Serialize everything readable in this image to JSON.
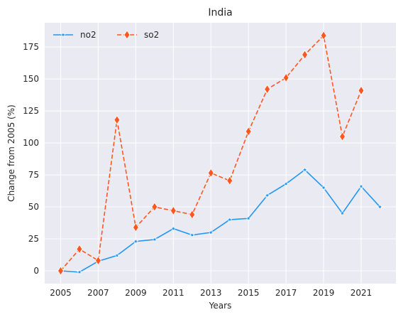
{
  "chart_data": {
    "type": "line",
    "title": "India",
    "xlabel": "Years",
    "ylabel": "Change from 2005 (%)",
    "xlim": [
      2004.15,
      2022.85
    ],
    "ylim": [
      -10,
      194
    ],
    "x_ticks": [
      2005,
      2007,
      2009,
      2011,
      2013,
      2015,
      2017,
      2019,
      2021
    ],
    "y_ticks": [
      0,
      25,
      50,
      75,
      100,
      125,
      150,
      175
    ],
    "grid": true,
    "legend": "top-left",
    "background": "#eaeaf2",
    "series": [
      {
        "name": "no2",
        "color": "#2196f3",
        "line_style": "solid",
        "marker": "star",
        "x": [
          2005,
          2006,
          2007,
          2008,
          2009,
          2010,
          2011,
          2012,
          2013,
          2014,
          2015,
          2016,
          2017,
          2018,
          2019,
          2020,
          2021,
          2022
        ],
        "y": [
          0,
          -1,
          7.5,
          12,
          23,
          24.5,
          33,
          28,
          30,
          40,
          41,
          59,
          68,
          79,
          65,
          45,
          66,
          50
        ]
      },
      {
        "name": "so2",
        "color": "#ff5722",
        "line_style": "dashed",
        "marker": "diamond",
        "x": [
          2005,
          2006,
          2007,
          2008,
          2009,
          2010,
          2011,
          2012,
          2013,
          2014,
          2015,
          2016,
          2017,
          2018,
          2019,
          2020,
          2021
        ],
        "y": [
          0,
          17,
          8,
          118,
          34,
          50,
          47,
          44,
          76.5,
          70.5,
          109,
          142,
          151,
          169,
          184,
          105,
          141
        ]
      }
    ]
  }
}
